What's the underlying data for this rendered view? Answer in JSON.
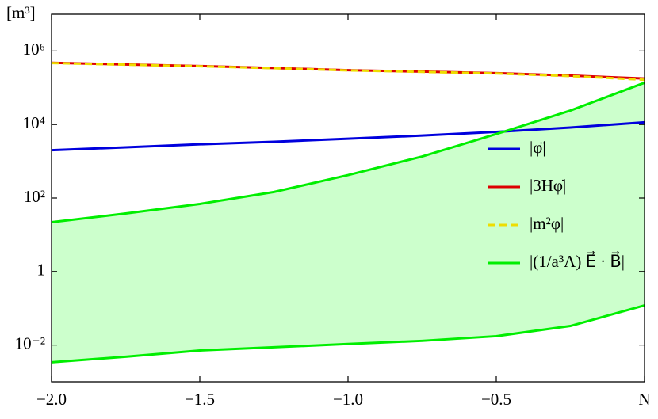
{
  "chart_data": {
    "type": "line",
    "ylabel": "[m³]",
    "x": [
      -2,
      -1.75,
      -1.5,
      -1.25,
      -1,
      -0.75,
      -0.5,
      -0.25,
      0
    ],
    "series": [
      {
        "name": "|φ̈|",
        "color": "#0000dd",
        "values": [
          2000,
          2400,
          2900,
          3400,
          4100,
          5000,
          6300,
          8300,
          11500
        ]
      },
      {
        "name": "|3Hφ̇|",
        "color": "#dd0000",
        "values": [
          480000,
          430000,
          390000,
          345000,
          300000,
          275000,
          250000,
          215000,
          178000
        ]
      },
      {
        "name": "|m²φ|",
        "color": "#eedd00",
        "dashed": true,
        "values": [
          470000,
          425000,
          385000,
          340000,
          297000,
          270000,
          245000,
          208000,
          165000
        ]
      },
      {
        "name": "|(1/a³Λ) E⃗ · B⃗|",
        "color": "#00ee00",
        "values": [
          22,
          38,
          69,
          146,
          420,
          1350,
          5500,
          24000,
          137000
        ]
      },
      {
        "color": "#00ee00",
        "values": [
          0.0034,
          0.0048,
          0.0071,
          0.0087,
          0.0107,
          0.013,
          0.0174,
          0.033,
          0.12
        ]
      }
    ],
    "fill_between": [
      3,
      4
    ],
    "fill_color": "#ccffcc",
    "xlim": [
      -2,
      0
    ],
    "xticks": [
      {
        "value": -2,
        "label": "−2.0"
      },
      {
        "value": -1.5,
        "label": "−1.5"
      },
      {
        "value": -1,
        "label": "−1.0"
      },
      {
        "value": -0.5,
        "label": "−0.5"
      },
      {
        "value": 0,
        "label": "N"
      }
    ],
    "ylim": [
      0.001,
      10000000
    ],
    "yticks": [
      {
        "value": 0.01,
        "label": "10⁻²"
      },
      1,
      {
        "value": 100,
        "label": "10²"
      },
      {
        "value": 10000,
        "label": "10⁴"
      },
      {
        "value": 1000000,
        "label": "10⁶"
      }
    ],
    "log_y": true,
    "legend": "center right"
  }
}
